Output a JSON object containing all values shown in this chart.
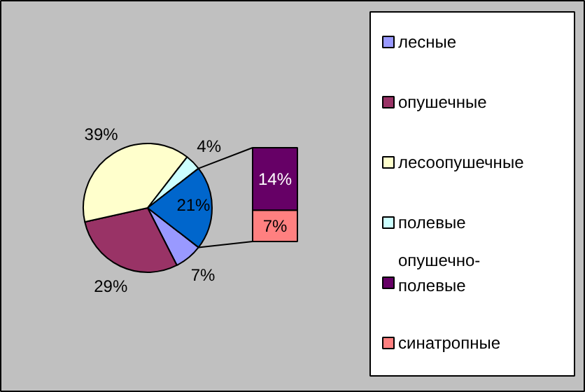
{
  "chart_data": [
    {
      "type": "pie",
      "categories": [
        "лесные",
        "опушечные",
        "лесоопушечные",
        "полевые",
        null
      ],
      "values": [
        7,
        29,
        39,
        4,
        21
      ],
      "colors": [
        "#9999ff",
        "#993366",
        "#ffffcc",
        "#ccffff",
        "#0066cc"
      ],
      "value_labels": [
        "7%",
        "29%",
        "39%",
        "4%",
        "21%"
      ],
      "legend": "right"
    },
    {
      "type": "bar",
      "stacked": true,
      "categories": [
        null
      ],
      "legend": "right",
      "series": [
        {
          "name": "синатропные",
          "color": "#ff8080",
          "values": [
            7
          ],
          "value_labels": [
            "7%"
          ]
        },
        {
          "name": "опушечно-полевые",
          "color": "#660066",
          "values": [
            14
          ],
          "value_labels": [
            "14%"
          ]
        }
      ]
    }
  ]
}
